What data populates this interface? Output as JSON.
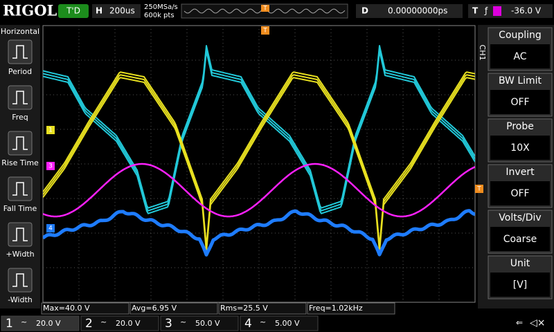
{
  "header": {
    "brand": "RIGOL",
    "status": "T'D",
    "timebase_label": "H",
    "timebase": "200us",
    "sample_rate": "250MSa/s",
    "memory_depth": "600k pts",
    "trigger_position": "T",
    "delay_label": "D",
    "delay": "0.00000000ps",
    "trigger_label": "T",
    "trigger_level": "-36.0 V"
  },
  "left_menu": {
    "title": "Horizontal",
    "items": [
      "Period",
      "Freq",
      "Rise Time",
      "Fall Time",
      "+Width",
      "-Width"
    ]
  },
  "right_menu": {
    "channel": "CH1",
    "items": [
      {
        "label": "Coupling",
        "value": "AC"
      },
      {
        "label": "BW Limit",
        "value": "OFF"
      },
      {
        "label": "Probe",
        "value": "10X"
      },
      {
        "label": "Invert",
        "value": "OFF"
      },
      {
        "label": "Volts/Div",
        "value": "Coarse"
      },
      {
        "label": "Unit",
        "value": "[V]"
      }
    ]
  },
  "markers": [
    "1",
    "3",
    "4",
    "T",
    "T"
  ],
  "measurements": [
    "Max=40.0 V",
    "Avg=6.95 V",
    "Rms=25.5 V",
    "Freq=1.02kHz"
  ],
  "channels": [
    {
      "number": "1",
      "scale": "20.0 V"
    },
    {
      "number": "2",
      "scale": "20.0 V"
    },
    {
      "number": "3",
      "scale": "50.0 V"
    },
    {
      "number": "4",
      "scale": "5.00 V"
    }
  ]
}
